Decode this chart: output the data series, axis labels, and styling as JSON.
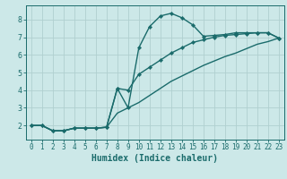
{
  "title": "",
  "xlabel": "Humidex (Indice chaleur)",
  "ylabel": "",
  "x_values": [
    0,
    1,
    2,
    3,
    4,
    5,
    6,
    7,
    8,
    9,
    10,
    11,
    12,
    13,
    14,
    15,
    16,
    17,
    18,
    19,
    20,
    21,
    22,
    23
  ],
  "line1": [
    2.0,
    2.0,
    1.7,
    1.7,
    1.85,
    1.85,
    1.85,
    1.9,
    4.1,
    3.0,
    6.4,
    7.6,
    8.2,
    8.35,
    8.1,
    7.7,
    7.05,
    7.1,
    7.15,
    7.25,
    7.25,
    7.25,
    7.25,
    6.95
  ],
  "line2": [
    2.0,
    2.0,
    1.7,
    1.7,
    1.85,
    1.85,
    1.85,
    1.9,
    4.1,
    4.0,
    4.9,
    5.3,
    5.7,
    6.1,
    6.4,
    6.7,
    6.85,
    7.0,
    7.1,
    7.15,
    7.2,
    7.25,
    7.25,
    6.95
  ],
  "line3": [
    2.0,
    2.0,
    1.7,
    1.7,
    1.85,
    1.85,
    1.85,
    1.9,
    2.7,
    3.0,
    3.3,
    3.7,
    4.1,
    4.5,
    4.8,
    5.1,
    5.4,
    5.65,
    5.9,
    6.1,
    6.35,
    6.6,
    6.75,
    6.95
  ],
  "line_color": "#1a6b6b",
  "bg_color": "#cce8e8",
  "grid_color": "#b0d0d0",
  "axis_bg": "#cce8e8",
  "xlim": [
    -0.5,
    23.5
  ],
  "ylim": [
    1.2,
    8.8
  ],
  "yticks": [
    2,
    3,
    4,
    5,
    6,
    7,
    8
  ],
  "xticks": [
    0,
    1,
    2,
    3,
    4,
    5,
    6,
    7,
    8,
    9,
    10,
    11,
    12,
    13,
    14,
    15,
    16,
    17,
    18,
    19,
    20,
    21,
    22,
    23
  ],
  "marker": "D",
  "markersize": 2.2,
  "linewidth": 1.0,
  "tick_fontsize": 5.5,
  "xlabel_fontsize": 7.0
}
